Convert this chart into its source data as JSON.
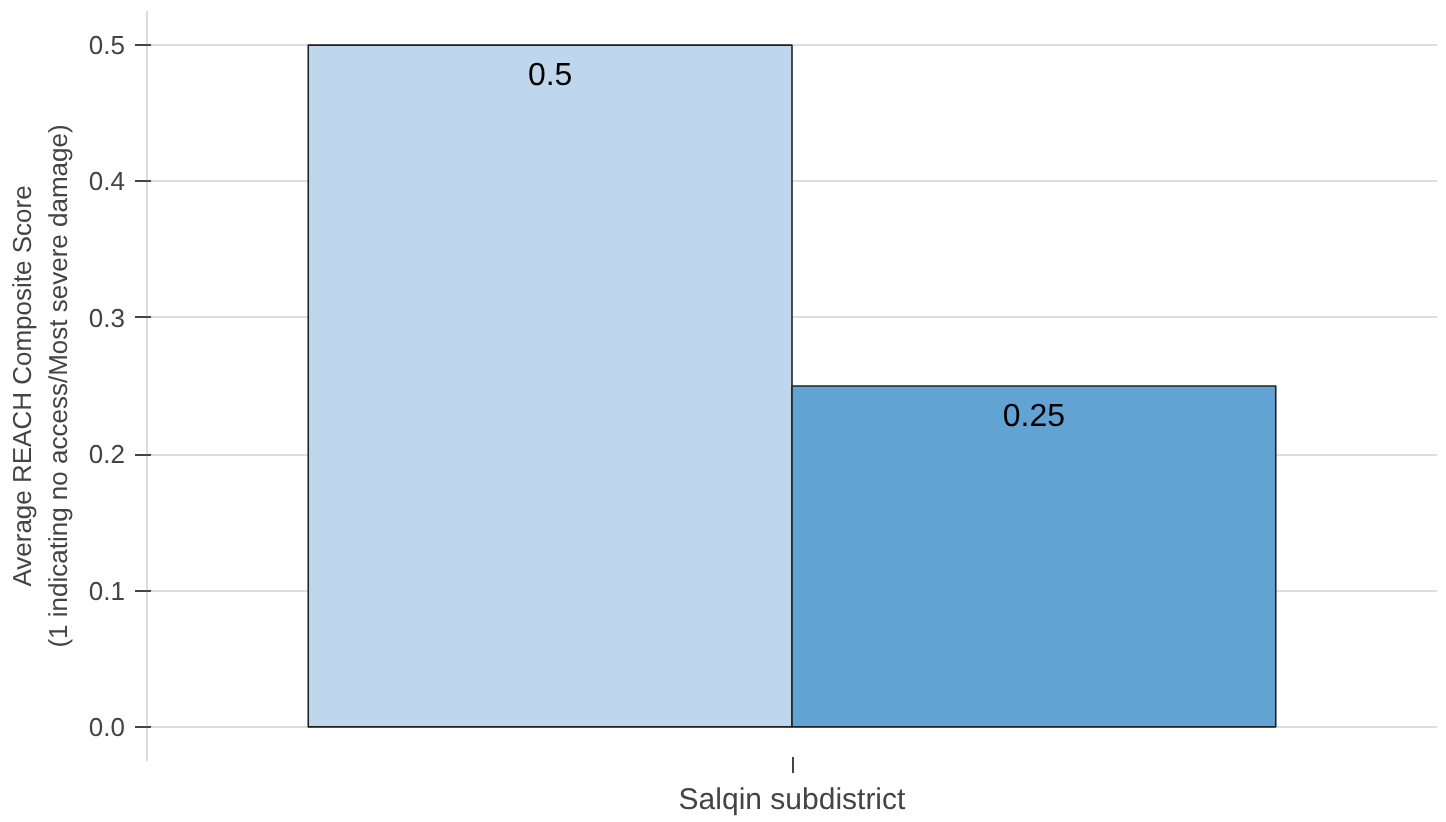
{
  "chart_data": {
    "type": "bar",
    "categories": [
      "Salqin subdistrict"
    ],
    "ylabel": "Average REACH Composite Score\n(1 indicating no access/Most severe damage)",
    "series": [
      {
        "color": "#bed7ed",
        "values": [
          0.5
        ]
      },
      {
        "color": "#62a3d3",
        "values": [
          0.25
        ]
      }
    ],
    "ylim": [
      -0.025,
      0.525
    ],
    "yticks": [
      {
        "value": 0,
        "label": "0.0"
      },
      {
        "value": 0.1,
        "label": "0.1"
      },
      {
        "value": 0.2,
        "label": "0.2"
      },
      {
        "value": 0.3,
        "label": "0.3"
      },
      {
        "value": 0.4,
        "label": "0.4"
      },
      {
        "value": 0.5,
        "label": "0.5"
      }
    ],
    "grid": "y",
    "data_labels": true
  }
}
